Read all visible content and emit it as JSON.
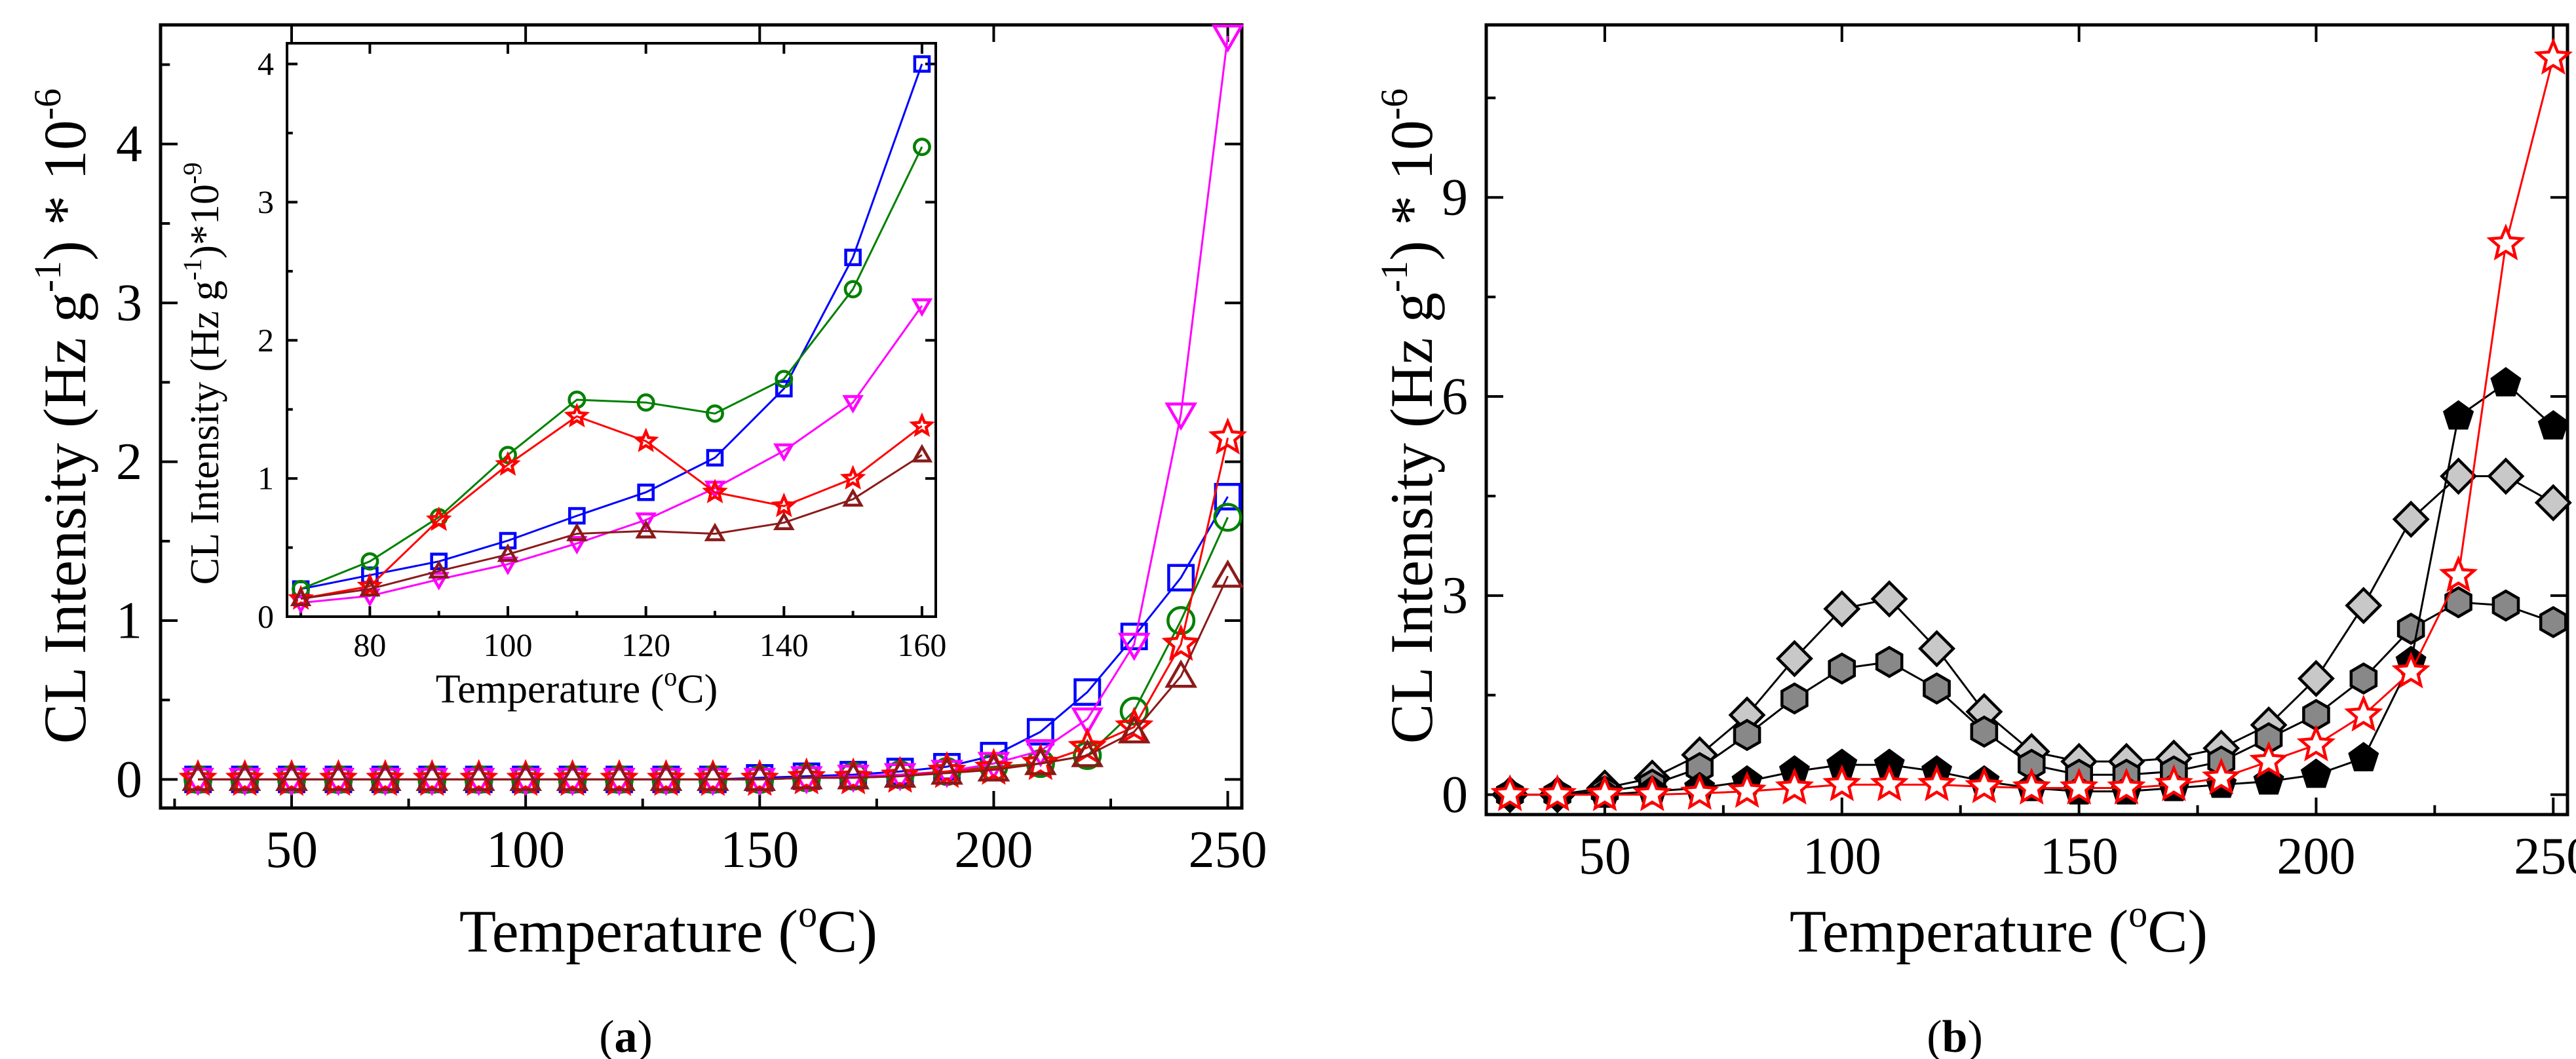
{
  "panels": {
    "a": {
      "caption_open": "(",
      "caption_letter": "a",
      "caption_close": ")"
    },
    "b": {
      "caption_open": "(",
      "caption_letter": "b",
      "caption_close": ")"
    }
  },
  "chart_data": [
    {
      "id": "a",
      "type": "line",
      "title": "",
      "xlabel": "Temperature (oC)",
      "ylabel": "CL Intensity (Hz g-1) * 10-6",
      "xlim": [
        22,
        253
      ],
      "ylim": [
        -0.18,
        4.75
      ],
      "xticks": [
        50,
        100,
        150,
        200,
        250
      ],
      "yticks": [
        0,
        1,
        2,
        3,
        4
      ],
      "x": [
        30,
        40,
        50,
        60,
        70,
        80,
        90,
        100,
        110,
        120,
        130,
        140,
        150,
        160,
        170,
        180,
        190,
        200,
        210,
        220,
        230,
        240,
        250
      ],
      "series": [
        {
          "name": "blue-square",
          "color": "#0000ff",
          "marker": "square",
          "filled": false,
          "values": [
            0,
            0,
            0,
            0,
            0,
            0,
            0,
            0,
            0,
            0,
            0,
            0,
            0.01,
            0.02,
            0.03,
            0.05,
            0.08,
            0.15,
            0.3,
            0.55,
            0.9,
            1.27,
            1.78
          ]
        },
        {
          "name": "green-circle",
          "color": "#008000",
          "marker": "circle",
          "filled": false,
          "values": [
            0,
            0,
            0,
            0,
            0,
            0,
            0,
            0,
            0,
            0,
            0,
            0,
            0,
            0.01,
            0.02,
            0.03,
            0.05,
            0.08,
            0.1,
            0.15,
            0.43,
            1.0,
            1.65
          ]
        },
        {
          "name": "magenta-triangle-down",
          "color": "#ff00ff",
          "marker": "triangle-down",
          "filled": false,
          "values": [
            0,
            0,
            0,
            0,
            0,
            0,
            0,
            0,
            0,
            0,
            0,
            0,
            0,
            0.01,
            0.02,
            0.03,
            0.05,
            0.1,
            0.18,
            0.38,
            0.85,
            2.3,
            4.68
          ]
        },
        {
          "name": "red-star",
          "color": "#ff0000",
          "marker": "star",
          "filled": false,
          "values": [
            0,
            0,
            0,
            0,
            0,
            0,
            0,
            0,
            0,
            0,
            0,
            0,
            0,
            0.01,
            0.01,
            0.02,
            0.05,
            0.07,
            0.1,
            0.2,
            0.33,
            0.85,
            2.15
          ]
        },
        {
          "name": "brown-triangle-up",
          "color": "#8b1a1a",
          "marker": "triangle-up",
          "filled": false,
          "values": [
            0,
            0,
            0,
            0,
            0,
            0,
            0,
            0,
            0,
            0,
            0,
            0,
            0,
            0.01,
            0.01,
            0.02,
            0.04,
            0.06,
            0.1,
            0.15,
            0.3,
            0.65,
            1.28
          ]
        }
      ]
    },
    {
      "id": "a-inset",
      "type": "line",
      "title": "",
      "xlabel": "Temperature (oC)",
      "ylabel": "CL Intensity (Hz g-1)*10-9",
      "xlim": [
        68,
        162
      ],
      "ylim": [
        0,
        4.15
      ],
      "xticks": [
        80,
        100,
        120,
        140,
        160
      ],
      "yticks": [
        0,
        1,
        2,
        3,
        4
      ],
      "x": [
        70,
        80,
        90,
        100,
        110,
        120,
        130,
        140,
        150,
        160
      ],
      "series": [
        {
          "name": "blue-square",
          "color": "#0000ff",
          "marker": "square",
          "filled": false,
          "values": [
            0.2,
            0.3,
            0.4,
            0.55,
            0.73,
            0.9,
            1.15,
            1.65,
            2.6,
            4.0
          ]
        },
        {
          "name": "green-circle",
          "color": "#008000",
          "marker": "circle",
          "filled": false,
          "values": [
            0.2,
            0.4,
            0.72,
            1.17,
            1.57,
            1.55,
            1.47,
            1.72,
            2.37,
            3.4
          ]
        },
        {
          "name": "magenta-triangle-down",
          "color": "#ff00ff",
          "marker": "triangle-down",
          "filled": false,
          "values": [
            0.1,
            0.15,
            0.27,
            0.38,
            0.53,
            0.7,
            0.93,
            1.2,
            1.55,
            2.25
          ]
        },
        {
          "name": "red-star",
          "color": "#ff0000",
          "marker": "star",
          "filled": false,
          "values": [
            0.13,
            0.22,
            0.7,
            1.1,
            1.45,
            1.27,
            0.9,
            0.8,
            1.0,
            1.38
          ]
        },
        {
          "name": "brown-triangle-up",
          "color": "#8b1a1a",
          "marker": "triangle-up",
          "filled": false,
          "values": [
            0.13,
            0.2,
            0.33,
            0.45,
            0.6,
            0.62,
            0.6,
            0.68,
            0.85,
            1.17
          ]
        }
      ]
    },
    {
      "id": "b",
      "type": "line",
      "title": "",
      "xlabel": "Temperature (oC)",
      "ylabel": "CL Intensity (Hz g-1) * 10-6",
      "xlim": [
        25,
        253
      ],
      "ylim": [
        -0.3,
        11.6
      ],
      "xticks": [
        50,
        100,
        150,
        200,
        250
      ],
      "yticks": [
        0,
        3,
        6,
        9
      ],
      "x": [
        30,
        40,
        50,
        60,
        70,
        80,
        90,
        100,
        110,
        120,
        130,
        140,
        150,
        160,
        170,
        180,
        190,
        200,
        210,
        220,
        230,
        240,
        250
      ],
      "series": [
        {
          "name": "lightgray-diamond",
          "color": "#000000",
          "fill": "#c8c8c8",
          "marker": "diamond",
          "filled": true,
          "values": [
            0,
            0,
            0.1,
            0.25,
            0.6,
            1.2,
            2.05,
            2.8,
            2.95,
            2.2,
            1.25,
            0.65,
            0.5,
            0.5,
            0.55,
            0.7,
            1.05,
            1.75,
            2.85,
            4.15,
            4.8,
            4.8,
            4.4
          ]
        },
        {
          "name": "gray-hexagon",
          "color": "#000000",
          "fill": "#888888",
          "marker": "hexagon",
          "filled": true,
          "values": [
            0,
            0,
            0.05,
            0.15,
            0.4,
            0.9,
            1.45,
            1.9,
            2.0,
            1.6,
            0.95,
            0.45,
            0.3,
            0.3,
            0.35,
            0.5,
            0.85,
            1.2,
            1.75,
            2.5,
            2.9,
            2.85,
            2.6
          ]
        },
        {
          "name": "black-pentagon",
          "color": "#000000",
          "fill": "#000000",
          "marker": "pentagon",
          "filled": true,
          "values": [
            0,
            0,
            0,
            0.05,
            0.1,
            0.2,
            0.35,
            0.45,
            0.45,
            0.35,
            0.2,
            0.1,
            0.05,
            0.05,
            0.1,
            0.15,
            0.2,
            0.3,
            0.55,
            2.0,
            5.7,
            6.2,
            5.55
          ]
        },
        {
          "name": "red-star",
          "color": "#ff0000",
          "fill": "#ffffff",
          "marker": "star",
          "filled": false,
          "values": [
            0,
            0,
            0,
            0,
            0.02,
            0.05,
            0.1,
            0.15,
            0.15,
            0.15,
            0.12,
            0.1,
            0.1,
            0.1,
            0.15,
            0.25,
            0.5,
            0.75,
            1.2,
            1.85,
            3.3,
            8.3,
            11.1
          ]
        }
      ]
    }
  ]
}
